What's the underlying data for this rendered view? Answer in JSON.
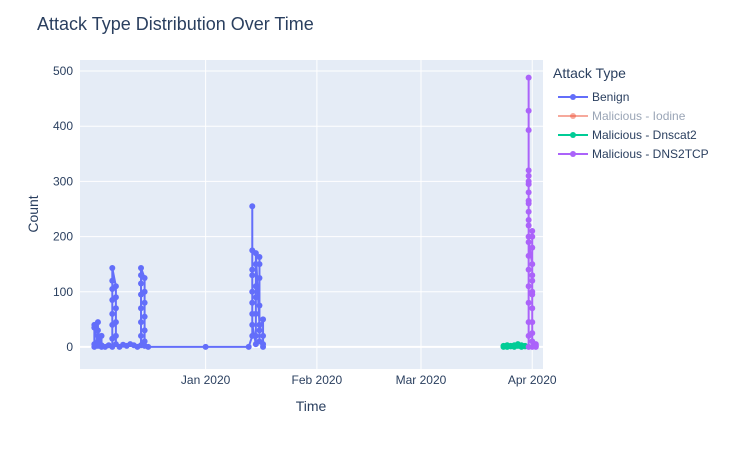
{
  "chart_data": {
    "type": "line",
    "title": "Attack Type Distribution Over Time",
    "xlabel": "Time",
    "ylabel": "Count",
    "legend_title": "Attack Type",
    "legend_position": "top-right",
    "grid": true,
    "x_axis_type": "date",
    "xlim": [
      "2019-11-27",
      "2020-04-04"
    ],
    "ylim": [
      -40,
      520
    ],
    "x_ticks": [
      {
        "date": "2020-01-01",
        "label": "Jan 2020"
      },
      {
        "date": "2020-02-01",
        "label": "Feb 2020"
      },
      {
        "date": "2020-03-01",
        "label": "Mar 2020"
      },
      {
        "date": "2020-04-01",
        "label": "Apr 2020"
      }
    ],
    "y_ticks": [
      0,
      100,
      200,
      300,
      400,
      500
    ],
    "colors": {
      "plot_bg": "#E5ECF6",
      "grid": "#ffffff",
      "text": "#2a3f5f"
    },
    "series": [
      {
        "name": "Benign",
        "color": "#636EFA",
        "dimmed": false,
        "points": [
          [
            "2019-12-01",
            0
          ],
          [
            "2019-12-01",
            35
          ],
          [
            "2019-12-01",
            5
          ],
          [
            "2019-12-01",
            40
          ],
          [
            "2019-12-02",
            2
          ],
          [
            "2019-12-02",
            45
          ],
          [
            "2019-12-02",
            10
          ],
          [
            "2019-12-02",
            30
          ],
          [
            "2019-12-03",
            0
          ],
          [
            "2019-12-03",
            20
          ],
          [
            "2019-12-03",
            3
          ],
          [
            "2019-12-04",
            0
          ],
          [
            "2019-12-05",
            3
          ],
          [
            "2019-12-06",
            0
          ],
          [
            "2019-12-06",
            15
          ],
          [
            "2019-12-06",
            40
          ],
          [
            "2019-12-06",
            60
          ],
          [
            "2019-12-06",
            85
          ],
          [
            "2019-12-06",
            105
          ],
          [
            "2019-12-06",
            120
          ],
          [
            "2019-12-06",
            143
          ],
          [
            "2019-12-07",
            110
          ],
          [
            "2019-12-07",
            90
          ],
          [
            "2019-12-07",
            70
          ],
          [
            "2019-12-07",
            45
          ],
          [
            "2019-12-07",
            20
          ],
          [
            "2019-12-07",
            5
          ],
          [
            "2019-12-08",
            0
          ],
          [
            "2019-12-09",
            4
          ],
          [
            "2019-12-10",
            2
          ],
          [
            "2019-12-11",
            5
          ],
          [
            "2019-12-12",
            3
          ],
          [
            "2019-12-13",
            0
          ],
          [
            "2019-12-14",
            3
          ],
          [
            "2019-12-14",
            20
          ],
          [
            "2019-12-14",
            45
          ],
          [
            "2019-12-14",
            70
          ],
          [
            "2019-12-14",
            95
          ],
          [
            "2019-12-14",
            115
          ],
          [
            "2019-12-14",
            130
          ],
          [
            "2019-12-14",
            143
          ],
          [
            "2019-12-15",
            125
          ],
          [
            "2019-12-15",
            100
          ],
          [
            "2019-12-15",
            80
          ],
          [
            "2019-12-15",
            55
          ],
          [
            "2019-12-15",
            30
          ],
          [
            "2019-12-15",
            10
          ],
          [
            "2019-12-15",
            2
          ],
          [
            "2019-12-16",
            0
          ],
          [
            "2020-01-01",
            0
          ],
          [
            "2020-01-13",
            0
          ],
          [
            "2020-01-14",
            20
          ],
          [
            "2020-01-14",
            60
          ],
          [
            "2020-01-14",
            100
          ],
          [
            "2020-01-14",
            140
          ],
          [
            "2020-01-14",
            175
          ],
          [
            "2020-01-14",
            255
          ],
          [
            "2020-01-14",
            130
          ],
          [
            "2020-01-14",
            80
          ],
          [
            "2020-01-14",
            40
          ],
          [
            "2020-01-15",
            5
          ],
          [
            "2020-01-15",
            90
          ],
          [
            "2020-01-15",
            150
          ],
          [
            "2020-01-15",
            60
          ],
          [
            "2020-01-15",
            110
          ],
          [
            "2020-01-15",
            20
          ],
          [
            "2020-01-15",
            170
          ],
          [
            "2020-01-16",
            40
          ],
          [
            "2020-01-16",
            125
          ],
          [
            "2020-01-16",
            10
          ],
          [
            "2020-01-16",
            75
          ],
          [
            "2020-01-16",
            163
          ],
          [
            "2020-01-16",
            150
          ],
          [
            "2020-01-16",
            30
          ],
          [
            "2020-01-17",
            50
          ],
          [
            "2020-01-17",
            20
          ],
          [
            "2020-01-17",
            5
          ],
          [
            "2020-01-17",
            0
          ]
        ]
      },
      {
        "name": "Malicious - Iodine",
        "color": "#EF553B",
        "dimmed": true,
        "points": []
      },
      {
        "name": "Malicious - Dnscat2",
        "color": "#00CC96",
        "dimmed": false,
        "points": [
          [
            "2020-03-24",
            2
          ],
          [
            "2020-03-24",
            0
          ],
          [
            "2020-03-25",
            3
          ],
          [
            "2020-03-25",
            0
          ],
          [
            "2020-03-26",
            2
          ],
          [
            "2020-03-26",
            1
          ],
          [
            "2020-03-27",
            3
          ],
          [
            "2020-03-27",
            0
          ],
          [
            "2020-03-28",
            2
          ],
          [
            "2020-03-28",
            5
          ],
          [
            "2020-03-29",
            0
          ],
          [
            "2020-03-29",
            3
          ],
          [
            "2020-03-30",
            1
          ],
          [
            "2020-03-30",
            2
          ]
        ]
      },
      {
        "name": "Malicious - DNS2TCP",
        "color": "#AB63FA",
        "dimmed": false,
        "points": [
          [
            "2020-03-31",
            0
          ],
          [
            "2020-03-31",
            20
          ],
          [
            "2020-03-31",
            45
          ],
          [
            "2020-03-31",
            80
          ],
          [
            "2020-03-31",
            110
          ],
          [
            "2020-03-31",
            140
          ],
          [
            "2020-03-31",
            165
          ],
          [
            "2020-03-31",
            200
          ],
          [
            "2020-03-31",
            220
          ],
          [
            "2020-03-31",
            245
          ],
          [
            "2020-03-31",
            265
          ],
          [
            "2020-03-31",
            280
          ],
          [
            "2020-03-31",
            295
          ],
          [
            "2020-03-31",
            310
          ],
          [
            "2020-03-31",
            320
          ],
          [
            "2020-03-31",
            393
          ],
          [
            "2020-03-31",
            428
          ],
          [
            "2020-03-31",
            488
          ],
          [
            "2020-03-31",
            300
          ],
          [
            "2020-03-31",
            260
          ],
          [
            "2020-03-31",
            230
          ],
          [
            "2020-03-31",
            190
          ],
          [
            "2020-04-01",
            150
          ],
          [
            "2020-04-01",
            120
          ],
          [
            "2020-04-01",
            95
          ],
          [
            "2020-04-01",
            200
          ],
          [
            "2020-04-01",
            210
          ],
          [
            "2020-04-01",
            180
          ],
          [
            "2020-04-01",
            130
          ],
          [
            "2020-04-01",
            100
          ],
          [
            "2020-04-01",
            70
          ],
          [
            "2020-04-01",
            45
          ],
          [
            "2020-04-01",
            25
          ],
          [
            "2020-04-01",
            10
          ],
          [
            "2020-04-01",
            0
          ],
          [
            "2020-04-02",
            5
          ],
          [
            "2020-04-02",
            2
          ],
          [
            "2020-04-02",
            0
          ]
        ]
      }
    ]
  }
}
